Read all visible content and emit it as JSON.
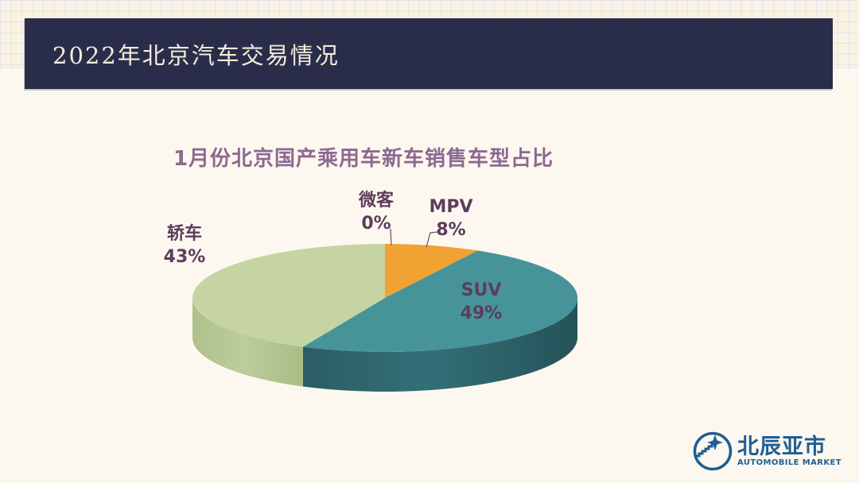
{
  "slide": {
    "header": {
      "title": "2022年北京汽车交易情况"
    },
    "chart_title": "1月份北京国产乘用车新车销售车型占比",
    "logo": {
      "name": "北辰亚市",
      "subtitle": "AUTOMOBILE MARKET"
    }
  },
  "theme": {
    "header_bg": "#2a2d4a",
    "header_text": "#f3ecdb",
    "slide_bg": "#fdf8ef",
    "grid_band_bg": "#faf3e2",
    "grid_line": "#e3e3f0",
    "title_color": "#8c6991",
    "label_color": "#5d3c5c",
    "logo_blue": "#1e5e94"
  },
  "chart_data": {
    "type": "pie",
    "style": "3d",
    "title": "1月份北京国产乘用车新车销售车型占比",
    "start_angle_deg": 0,
    "direction": "clockwise",
    "legend": "none",
    "slices": [
      {
        "label": "微客",
        "value": 0,
        "pct_label": "0%",
        "color": "#b8b8b8"
      },
      {
        "label": "MPV",
        "value": 8,
        "pct_label": "8%",
        "color": "#f0a233"
      },
      {
        "label": "SUV",
        "value": 49,
        "pct_label": "49%",
        "color": "#46949a",
        "side": {
          "left": "#2b5d64",
          "mid": "#336f77",
          "right": "#255359"
        }
      },
      {
        "label": "轿车",
        "value": 43,
        "pct_label": "43%",
        "color": "#c6d4a4",
        "side": {
          "left": "#aec08b",
          "mid": "#bccd9b",
          "right": "#a9bd86"
        }
      }
    ]
  }
}
